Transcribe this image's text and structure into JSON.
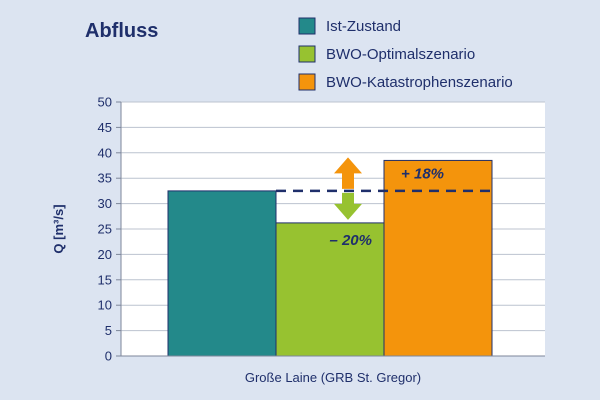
{
  "chart_data": {
    "type": "bar",
    "title": "Abfluss",
    "ylabel": "Q [m³/s]",
    "xlabel": "Große Laine (GRB St. Gregor)",
    "ylim": [
      0,
      50
    ],
    "yticks": [
      0,
      5,
      10,
      15,
      20,
      25,
      30,
      35,
      40,
      45,
      50
    ],
    "grid": true,
    "legend_position": "top-right",
    "series": [
      {
        "name": "Ist-Zustand",
        "value": 32.5,
        "color": "#23898a"
      },
      {
        "name": "BWO-Optimalszenario",
        "value": 26.2,
        "color": "#97c230"
      },
      {
        "name": "BWO-Katastrophenszenario",
        "value": 38.5,
        "color": "#f4940c"
      }
    ],
    "reference_line": {
      "value": 32.5,
      "style": "dashed"
    },
    "annotations": [
      {
        "text": "+ 18%",
        "series": "BWO-Katastrophenszenario"
      },
      {
        "text": "– 20%",
        "series": "BWO-Optimalszenario"
      }
    ],
    "colors": {
      "text": "#1f2f6b",
      "up_arrow": "#f4940c",
      "down_arrow": "#97c230"
    }
  }
}
